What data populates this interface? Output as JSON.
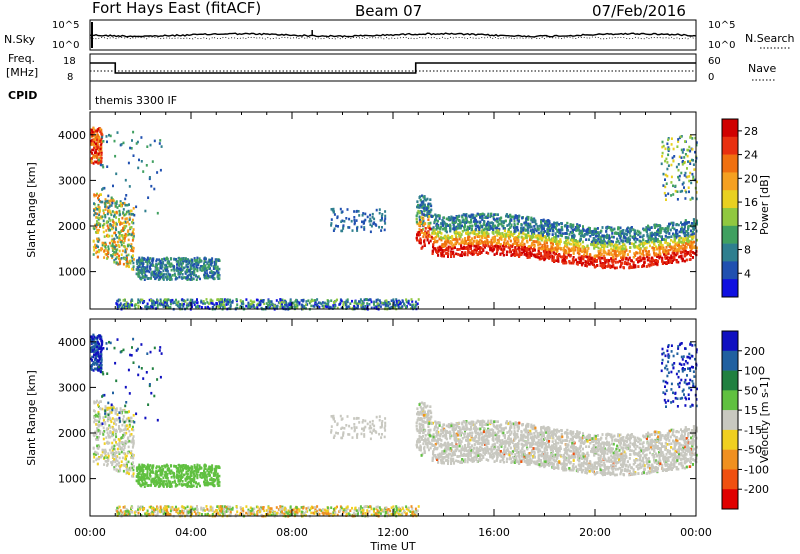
{
  "header": {
    "station": "Fort Hays East (fitACF)",
    "beam": "Beam 07",
    "date": "07/Feb/2016"
  },
  "left_labels": {
    "nsky": "N.Sky",
    "freq": "Freq.",
    "freq_unit": "[MHz]",
    "cpid": "CPID",
    "nsky_ticks": [
      "10^5",
      "10^0"
    ],
    "freq_ticks": [
      "18",
      "8"
    ]
  },
  "right_labels": {
    "nsearch": "N.Search",
    "nave": "Nave",
    "nsearch_ticks": [
      "10^5",
      "10^0"
    ],
    "nave_ticks": [
      "60",
      "0"
    ]
  },
  "cpid_text": "themis 3300 IF",
  "chart_data": [
    {
      "type": "heatmap",
      "panel": "power",
      "ylabel": "Slant Range [km]",
      "yticks": [
        "1000",
        "2000",
        "3000",
        "4000"
      ],
      "ylim": [
        180,
        4500
      ],
      "xlim_hours": [
        0,
        24
      ],
      "colorbar": {
        "label": "Power [dB]",
        "ticks": [
          "4",
          "8",
          "12",
          "16",
          "20",
          "24",
          "28"
        ],
        "range": [
          0,
          30
        ],
        "colors": [
          "#1010e0",
          "#2050b0",
          "#2f7f8f",
          "#40a060",
          "#90c840",
          "#e8d020",
          "#f5a020",
          "#f07010",
          "#e83010",
          "#d00000"
        ]
      },
      "regions": [
        {
          "t0": 0.0,
          "t1": 0.5,
          "r0": 3400,
          "r1": 4200,
          "level": "high"
        },
        {
          "t0": 0.2,
          "t1": 1.7,
          "r0": 1400,
          "r1": 2800,
          "level": "mixed"
        },
        {
          "t0": 1.8,
          "t1": 5.2,
          "r0": 850,
          "r1": 1350,
          "level": "low"
        },
        {
          "t0": 12.9,
          "t1": 24.0,
          "r0": 1000,
          "r1": 2200,
          "level": "strong"
        },
        {
          "t0": 22.8,
          "t1": 24.0,
          "r0": 3000,
          "r1": 4000,
          "level": "low"
        }
      ]
    },
    {
      "type": "heatmap",
      "panel": "velocity",
      "ylabel": "Slant Range [km]",
      "yticks": [
        "1000",
        "2000",
        "3000",
        "4000"
      ],
      "ylim": [
        180,
        4500
      ],
      "xlabel": "Time UT",
      "xticks": [
        "00:00",
        "04:00",
        "08:00",
        "12:00",
        "16:00",
        "20:00",
        "00:00"
      ],
      "colorbar": {
        "label": "Velocity [m s-1]",
        "ticks": [
          "200",
          "100",
          "50",
          "15",
          "-15",
          "-50",
          "-100",
          "-200"
        ],
        "colors": [
          "#1010c0",
          "#2060a0",
          "#208040",
          "#60c040",
          "#c8c8c0",
          "#f0d020",
          "#f09020",
          "#f05010",
          "#e00000"
        ]
      }
    }
  ]
}
